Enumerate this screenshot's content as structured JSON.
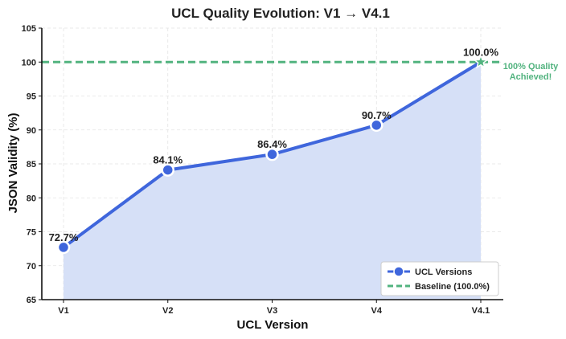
{
  "chart_data": {
    "type": "line",
    "title": "UCL Quality Evolution: V1 → V4.1",
    "xlabel": "UCL Version",
    "ylabel": "JSON Validity (%)",
    "categories": [
      "V1",
      "V2",
      "V3",
      "V4",
      "V4.1"
    ],
    "series": [
      {
        "name": "UCL Versions",
        "values": [
          72.7,
          84.1,
          86.4,
          90.7,
          100.0
        ],
        "labels": [
          "72.7%",
          "84.1%",
          "86.4%",
          "90.7%",
          "100.0%"
        ],
        "color": "#3f66dc",
        "fill": "#d6e0f7"
      }
    ],
    "baseline": {
      "name": "Baseline (100.0%)",
      "value": 100.0,
      "color": "#52b37f",
      "style": "dashed"
    },
    "annotation": {
      "text_line1": "100% Quality",
      "text_line2": "Achieved!",
      "color": "#52b37f",
      "marker": "star"
    },
    "ylim": [
      65,
      105
    ],
    "yticks": [
      65,
      70,
      75,
      80,
      85,
      90,
      95,
      100,
      105
    ],
    "grid": true,
    "legend": {
      "position": "bottom-right"
    }
  }
}
